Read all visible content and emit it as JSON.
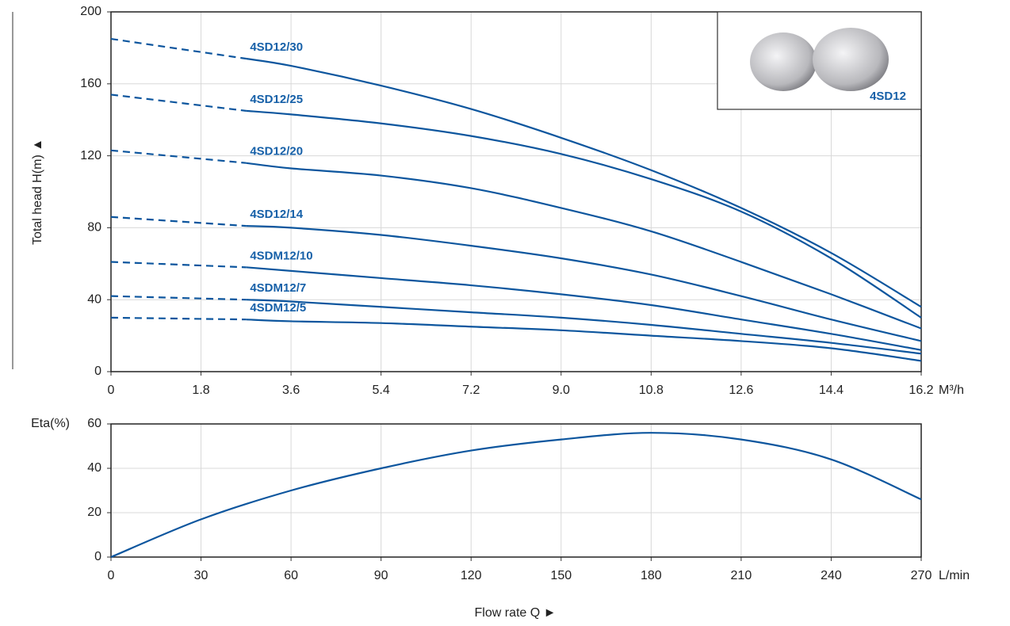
{
  "chart_data": [
    {
      "type": "line",
      "ylabel": "Total head H(m) ▲",
      "x_unit": "M³/h",
      "inset_label": "4SD12",
      "x": [
        0,
        2.7,
        3.6,
        5.4,
        7.2,
        9.0,
        10.8,
        12.6,
        14.4,
        16.2
      ],
      "xlim": [
        0,
        16.2
      ],
      "xticks": [
        0,
        1.8,
        3.6,
        5.4,
        7.2,
        {
          "value": 9,
          "label": "9.0"
        },
        10.8,
        12.6,
        14.4,
        16.2
      ],
      "ylim": [
        0,
        200
      ],
      "yticks": [
        0,
        40,
        80,
        120,
        160,
        200
      ],
      "grid": true,
      "dash_to_x": 2.7,
      "series": [
        {
          "name": "4SD12/30",
          "color": "#0d569e",
          "values": [
            185,
            174,
            170,
            159,
            146,
            130,
            112,
            91,
            66,
            36
          ]
        },
        {
          "name": "4SD12/25",
          "color": "#0d569e",
          "values": [
            154,
            145,
            143,
            138,
            131,
            121,
            107,
            89,
            63,
            30
          ]
        },
        {
          "name": "4SD12/20",
          "color": "#0d569e",
          "values": [
            123,
            116,
            113,
            109,
            102,
            91,
            78,
            61,
            43,
            24
          ]
        },
        {
          "name": "4SD12/14",
          "color": "#0d569e",
          "values": [
            86,
            81,
            80,
            76,
            70,
            63,
            54,
            42,
            29,
            17
          ]
        },
        {
          "name": "4SDM12/10",
          "color": "#0d569e",
          "values": [
            61,
            58,
            56,
            52,
            48,
            43,
            37,
            29,
            21,
            12
          ]
        },
        {
          "name": "4SDM12/7",
          "color": "#0d569e",
          "values": [
            42,
            40,
            39,
            36,
            33,
            30,
            26,
            21,
            16,
            10
          ]
        },
        {
          "name": "4SDM12/5",
          "color": "#0d569e",
          "values": [
            30,
            29,
            28,
            27,
            25,
            23,
            20,
            17,
            13,
            6
          ]
        }
      ]
    },
    {
      "type": "line",
      "ylabel": "Eta(%)",
      "xlabel": "Flow rate Q ►",
      "x_unit": "L/min",
      "x": [
        0,
        30,
        60,
        90,
        120,
        150,
        180,
        210,
        240,
        270
      ],
      "xlim": [
        0,
        270
      ],
      "xticks": [
        0,
        30,
        60,
        90,
        120,
        150,
        180,
        210,
        240,
        270
      ],
      "ylim": [
        0,
        60
      ],
      "yticks": [
        0,
        20,
        40,
        60
      ],
      "grid": true,
      "series": [
        {
          "color": "#0d569e",
          "values": [
            0,
            17,
            30,
            40,
            48,
            53,
            56,
            53,
            44,
            26
          ]
        }
      ]
    }
  ]
}
